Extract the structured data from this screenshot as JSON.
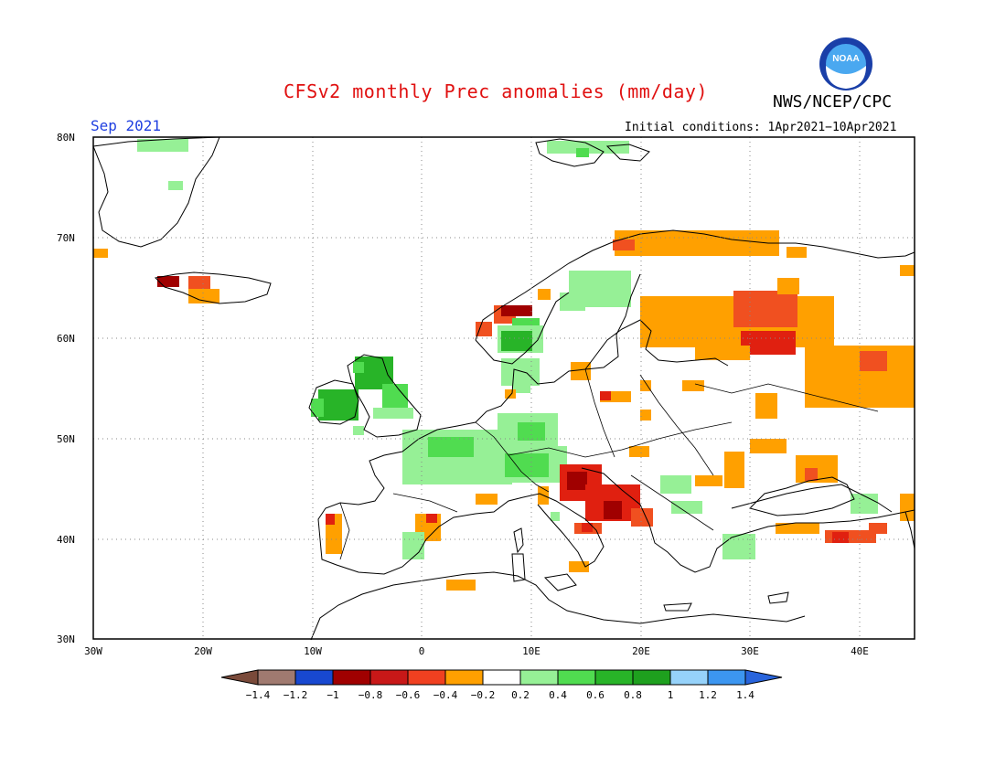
{
  "title": "CFSv2 monthly Prec anomalies (mm/day)",
  "agency": "NWS/NCEP/CPC",
  "month": "Sep 2021",
  "initial_conditions": "Initial conditions: 1Apr2021−10Apr2021",
  "logo": {
    "text": "NOAA",
    "icon": "noaa-logo"
  },
  "map": {
    "lat_labels": [
      "80N",
      "70N",
      "60N",
      "50N",
      "40N",
      "30N"
    ],
    "lon_labels": [
      "30W",
      "20W",
      "10W",
      "0",
      "10E",
      "20E",
      "30E",
      "40E"
    ]
  },
  "colorbar": {
    "labels": [
      "−1.4",
      "−1.2",
      "−1",
      "−0.8",
      "−0.6",
      "−0.4",
      "−0.2",
      "0.2",
      "0.4",
      "0.6",
      "0.8",
      "1",
      "1.2",
      "1.4"
    ],
    "colors": [
      "#7a4a3a",
      "#a07a70",
      "#1848d0",
      "#a00000",
      "#c81818",
      "#f04020",
      "#ffa000",
      "#ffffff",
      "#96f096",
      "#50dc50",
      "#28b428",
      "#1ea01e",
      "#96d2fa",
      "#3c96f0",
      "#2864dc"
    ]
  },
  "anomaly_colors": {
    "dark_red": "#a00000",
    "red": "#e02010",
    "orange_red": "#f05020",
    "orange": "#ffa000",
    "light_green": "#96f096",
    "green": "#50dc50",
    "dark_green": "#28b428"
  }
}
